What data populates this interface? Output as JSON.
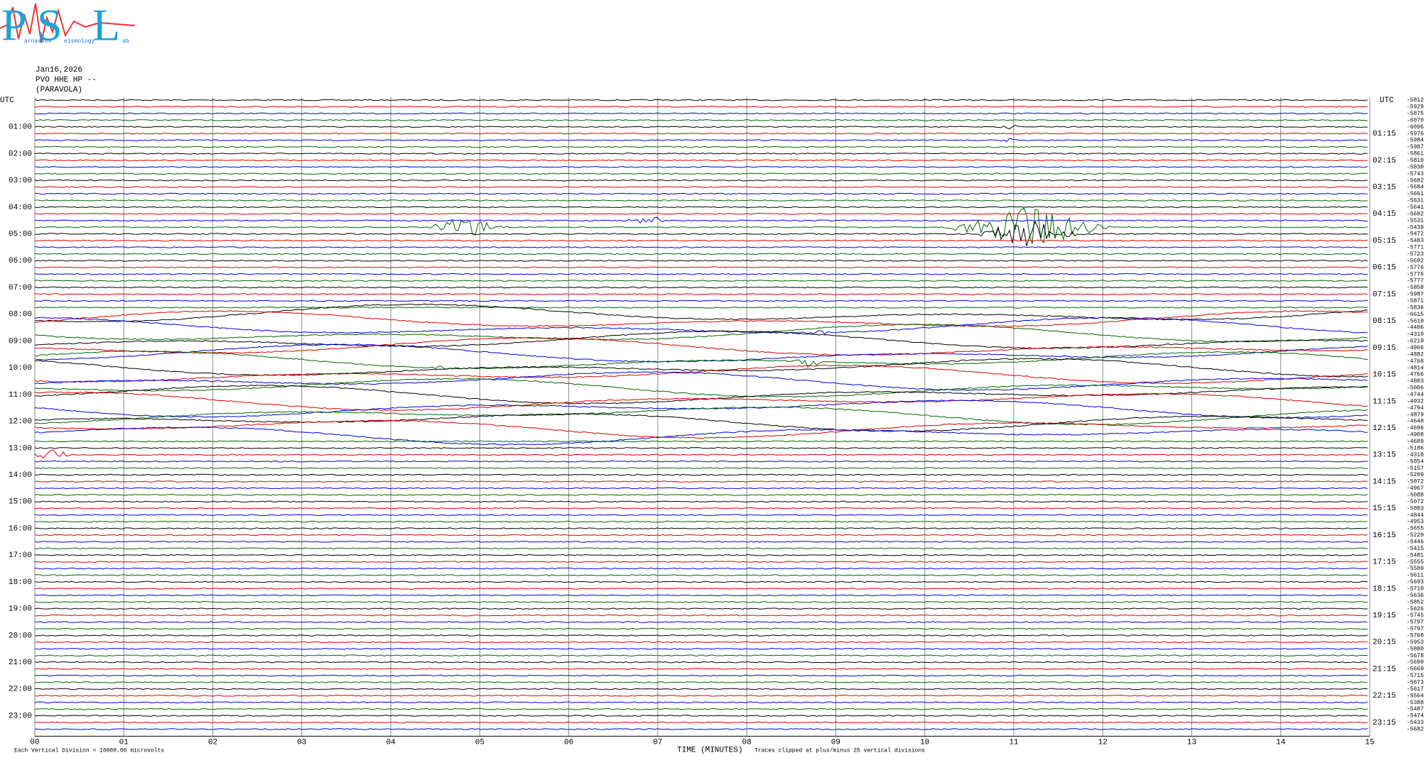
{
  "logo": {
    "letters": [
      "P",
      "S",
      "L"
    ],
    "small": [
      "arnassos",
      "eismology",
      "ab"
    ]
  },
  "header": {
    "date": "Jan16,2026",
    "station": "PVO HHE HP --",
    "place": "(PARAVOLA)"
  },
  "left_labels": [
    "UTC",
    "01:00",
    "02:00",
    "03:00",
    "04:00",
    "05:00",
    "06:00",
    "07:00",
    "08:00",
    "09:00",
    "10:00",
    "11:00",
    "12:00",
    "13:00",
    "14:00",
    "15:00",
    "16:00",
    "17:00",
    "18:00",
    "19:00",
    "20:00",
    "21:00",
    "22:00",
    "23:00"
  ],
  "right_labels": [
    "UTC",
    "01:15",
    "02:15",
    "03:15",
    "04:15",
    "05:15",
    "06:15",
    "07:15",
    "08:15",
    "09:15",
    "10:15",
    "11:15",
    "12:15",
    "13:15",
    "14:15",
    "15:15",
    "16:15",
    "17:15",
    "18:15",
    "19:15",
    "20:15",
    "21:15",
    "22:15",
    "23:15"
  ],
  "row_values": [
    "-5812",
    "-5929",
    "-5875",
    "-6070",
    "-6096",
    "-5976",
    "-5984",
    "-5987",
    "-5861",
    "-5810",
    "-5830",
    "-5743",
    "-5682",
    "-5684",
    "-5661",
    "-5631",
    "-5641",
    "-5682",
    "-5531",
    "-5439",
    "-5472",
    "-5483",
    "-5771",
    "-5723",
    "-5692",
    "-5776",
    "-5776",
    "-5777",
    "-5858",
    "-5987",
    "-5871",
    "-5836",
    "-6615",
    "-5610",
    "-4406",
    "-4310",
    "-6219",
    "-4966",
    "-4882",
    "-4768",
    "-4814",
    "-4766",
    "-4883",
    "-5006",
    "-4744",
    "-4932",
    "-4794",
    "-4879",
    "-4648",
    "-4696",
    "-4908",
    "-4689",
    "-5186",
    "-4318",
    "-5054",
    "-5157",
    "-5299",
    "-5072",
    "-4967",
    "-5088",
    "-5072",
    "-5083",
    "-4844",
    "-4953",
    "-5655",
    "-5229",
    "-5446",
    "-5415",
    "-5481",
    "-5555",
    "-5589",
    "-5611",
    "-5693",
    "-5710",
    "-5636",
    "-5852",
    "-5626",
    "-5745",
    "-5797",
    "-5797",
    "-5768",
    "-5953",
    "-5880",
    "-5678",
    "-5699",
    "-5669",
    "-5715",
    "-5673",
    "-5617",
    "-5564",
    "-5388",
    "-5487",
    "-5474",
    "-5433",
    "-5682"
  ],
  "x_labels": [
    "00",
    "01",
    "02",
    "03",
    "04",
    "05",
    "06",
    "07",
    "08",
    "09",
    "10",
    "11",
    "12",
    "13",
    "14",
    "15"
  ],
  "footer": {
    "scale": "Each Vertical Division = 10000.00 microvolts",
    "axis_title": "TIME (MINUTES)",
    "clip": "Traces clipped at plus/minus 25 vertical divisions"
  }
}
